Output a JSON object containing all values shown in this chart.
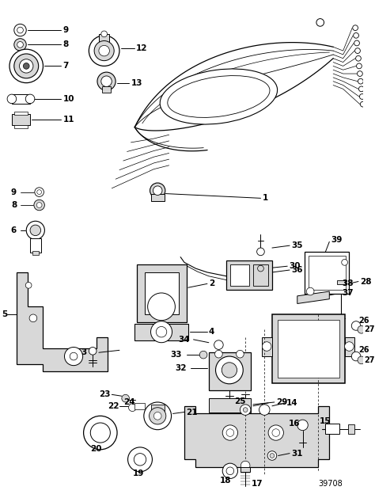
{
  "bg_color": "#ffffff",
  "diagram_id": "39708",
  "line_color": "#000000",
  "font_size": 7.5
}
